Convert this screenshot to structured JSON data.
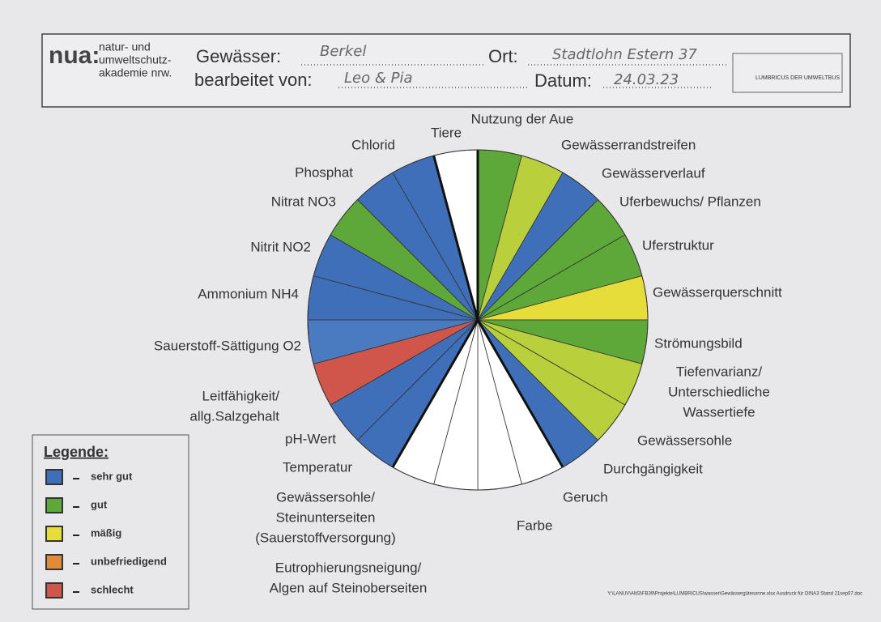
{
  "header": {
    "logo": "nua:",
    "org": [
      "natur- und",
      "umweltschutz-",
      "akademie nrw."
    ],
    "fields": [
      {
        "label": "Gewässer:",
        "value": "Berkel"
      },
      {
        "label": "Ort:",
        "value": "Stadtlohn Estern 37"
      },
      {
        "label": "bearbeitet von:",
        "value": "Leo & Pia"
      },
      {
        "label": "Datum:",
        "value": "24.03.23"
      }
    ],
    "bus": "LUMBRICUS DER UMWELTBUS"
  },
  "segments": [
    {
      "label": [
        "Nutzung der Aue"
      ],
      "color": "#5ea83a"
    },
    {
      "label": [
        "Gewässerrandstreifen"
      ],
      "color": "#b9d03c"
    },
    {
      "label": [
        "Gewässerverlauf"
      ],
      "color": "#3f6fb8"
    },
    {
      "label": [
        "Uferbewuchs/ Pflanzen"
      ],
      "color": "#5ea83a"
    },
    {
      "label": [
        "Uferstruktur"
      ],
      "color": "#5ea83a"
    },
    {
      "label": [
        "Gewässerquerschnitt"
      ],
      "color": "#e6dc3a"
    },
    {
      "label": [
        "Strömungsbild"
      ],
      "color": "#5ea83a"
    },
    {
      "label": [
        "Tiefenvarianz/",
        "Unterschiedliche",
        "Wassertiefe"
      ],
      "color": "#b9d03c"
    },
    {
      "label": [
        "Gewässersohle"
      ],
      "color": "#b9d03c"
    },
    {
      "label": [
        "Durchgängigkeit"
      ],
      "color": "#3f6fb8"
    },
    {
      "label": [
        "Geruch"
      ],
      "color": "#ffffff"
    },
    {
      "label": [
        "Farbe"
      ],
      "color": "#ffffff"
    },
    {
      "label": [
        "Eutrophierungsneigung/",
        "Algen auf Steinoberseiten"
      ],
      "color": "#ffffff"
    },
    {
      "label": [
        "Gewässersohle/",
        "Steinunterseiten",
        "(Sauerstoffversorgung)"
      ],
      "color": "#ffffff"
    },
    {
      "label": [
        "Temperatur"
      ],
      "color": "#3f6fb8"
    },
    {
      "label": [
        "pH-Wert"
      ],
      "color": "#3f6fb8"
    },
    {
      "label": [
        "Leitfähigkeit/",
        "allg.Salzgehalt"
      ],
      "color": "#d0554a"
    },
    {
      "label": [
        "Sauerstoff-Sättigung O2"
      ],
      "color": "#4a7bc0"
    },
    {
      "label": [
        "Ammonium NH4"
      ],
      "color": "#3f6fb8"
    },
    {
      "label": [
        "Nitrit NO2"
      ],
      "color": "#3f6fb8"
    },
    {
      "label": [
        "Nitrat NO3"
      ],
      "color": "#5ea83a"
    },
    {
      "label": [
        "Phosphat"
      ],
      "color": "#3f6fb8"
    },
    {
      "label": [
        "Chlorid"
      ],
      "color": "#3f6fb8"
    },
    {
      "label": [
        "Tiere"
      ],
      "color": "#ffffff"
    }
  ],
  "legend": {
    "title": "Legende:",
    "items": [
      {
        "label": "sehr gut",
        "color": "#3f6fb8"
      },
      {
        "label": "gut",
        "color": "#5ea83a"
      },
      {
        "label": "mäßig",
        "color": "#e6dc3a"
      },
      {
        "label": "unbefriedigend",
        "color": "#e08a3a"
      },
      {
        "label": "schlecht",
        "color": "#d0554a"
      }
    ]
  },
  "footer": "Y:\\LANUV\\AM3\\FB39\\Projekte\\LUMBRICUS\\wasser\\Gewässergütesonne.xlsx Ausdruck für DINA3 Stand 21sep07.doc"
}
